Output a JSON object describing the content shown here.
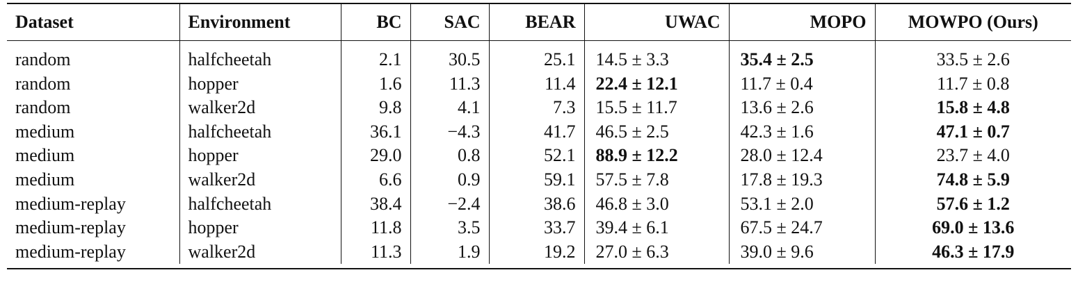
{
  "table": {
    "headers": [
      "Dataset",
      "Environment",
      "BC",
      "SAC",
      "BEAR",
      "UWAC",
      "MOPO",
      "MOWPO (Ours)"
    ],
    "rows": [
      {
        "dataset": "random",
        "env": "halfcheetah",
        "bc": "2.1",
        "sac": "30.5",
        "bear": "25.1",
        "uwac": {
          "value": "14.5 ± 3.3",
          "bold": false
        },
        "mopo": {
          "value": "35.4 ± 2.5",
          "bold": true
        },
        "mowpo": {
          "value": "33.5 ± 2.6",
          "bold": false
        }
      },
      {
        "dataset": "random",
        "env": "hopper",
        "bc": "1.6",
        "sac": "11.3",
        "bear": "11.4",
        "uwac": {
          "value": "22.4 ± 12.1",
          "bold": true
        },
        "mopo": {
          "value": "11.7 ± 0.4",
          "bold": false
        },
        "mowpo": {
          "value": "11.7 ± 0.8",
          "bold": false
        }
      },
      {
        "dataset": "random",
        "env": "walker2d",
        "bc": "9.8",
        "sac": "4.1",
        "bear": "7.3",
        "uwac": {
          "value": "15.5 ± 11.7",
          "bold": false
        },
        "mopo": {
          "value": "13.6 ± 2.6",
          "bold": false
        },
        "mowpo": {
          "value": "15.8 ± 4.8",
          "bold": true
        }
      },
      {
        "dataset": "medium",
        "env": "halfcheetah",
        "bc": "36.1",
        "sac": "−4.3",
        "bear": "41.7",
        "uwac": {
          "value": "46.5 ± 2.5",
          "bold": false
        },
        "mopo": {
          "value": "42.3 ± 1.6",
          "bold": false
        },
        "mowpo": {
          "value": "47.1 ± 0.7",
          "bold": true
        }
      },
      {
        "dataset": "medium",
        "env": "hopper",
        "bc": "29.0",
        "sac": "0.8",
        "bear": "52.1",
        "uwac": {
          "value": "88.9 ± 12.2",
          "bold": true
        },
        "mopo": {
          "value": "28.0 ± 12.4",
          "bold": false
        },
        "mowpo": {
          "value": "23.7 ± 4.0",
          "bold": false
        }
      },
      {
        "dataset": "medium",
        "env": "walker2d",
        "bc": "6.6",
        "sac": "0.9",
        "bear": "59.1",
        "uwac": {
          "value": "57.5 ± 7.8",
          "bold": false
        },
        "mopo": {
          "value": "17.8 ± 19.3",
          "bold": false
        },
        "mowpo": {
          "value": "74.8 ± 5.9",
          "bold": true
        }
      },
      {
        "dataset": "medium-replay",
        "env": "halfcheetah",
        "bc": "38.4",
        "sac": "−2.4",
        "bear": "38.6",
        "uwac": {
          "value": "46.8 ± 3.0",
          "bold": false
        },
        "mopo": {
          "value": "53.1 ± 2.0",
          "bold": false
        },
        "mowpo": {
          "value": "57.6 ± 1.2",
          "bold": true
        }
      },
      {
        "dataset": "medium-replay",
        "env": "hopper",
        "bc": "11.8",
        "sac": "3.5",
        "bear": "33.7",
        "uwac": {
          "value": "39.4 ± 6.1",
          "bold": false
        },
        "mopo": {
          "value": "67.5 ± 24.7",
          "bold": false
        },
        "mowpo": {
          "value": "69.0 ± 13.6",
          "bold": true
        }
      },
      {
        "dataset": "medium-replay",
        "env": "walker2d",
        "bc": "11.3",
        "sac": "1.9",
        "bear": "19.2",
        "uwac": {
          "value": "27.0 ± 6.3",
          "bold": false
        },
        "mopo": {
          "value": "39.0 ± 9.6",
          "bold": false
        },
        "mowpo": {
          "value": "46.3 ± 17.9",
          "bold": true
        }
      }
    ]
  }
}
